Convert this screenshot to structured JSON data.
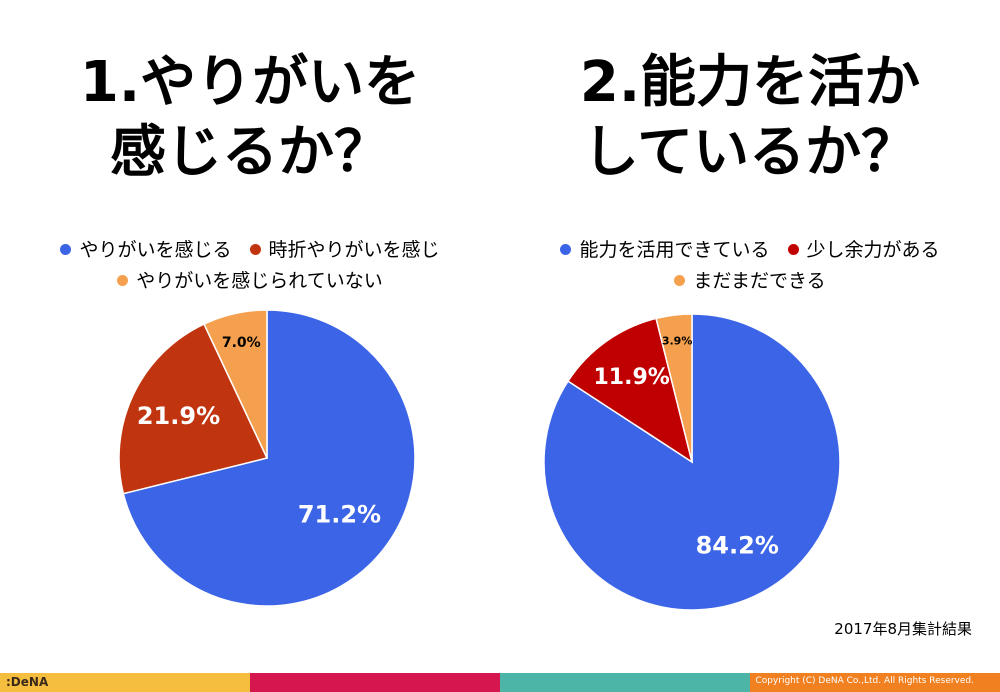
{
  "titles": {
    "left": [
      "1.やりがいを",
      "感じるか？"
    ],
    "right": [
      "2.能力を活か",
      "しているか？"
    ]
  },
  "legend_left": {
    "row1": [
      "やりがいを感じる",
      "時折やりがいを感じ"
    ],
    "row2": [
      "やりがいを感じられていない"
    ]
  },
  "legend_right": {
    "row1": [
      "能力を活用できている",
      "少し余力がある"
    ],
    "row2": [
      "まだまだできる"
    ]
  },
  "colors": {
    "blue": "#3c64e6",
    "red_left": "#c0350f",
    "red_right": "#c00000",
    "orange": "#f5a04e",
    "footer1": "#f6be3f",
    "footer2": "#d6164e",
    "footer3": "#4cb5a7",
    "footer4": "#f08020"
  },
  "chart_data": [
    {
      "type": "pie",
      "title": "1.やりがいを感じるか？",
      "categories": [
        "やりがいを感じる",
        "時折やりがいを感じ",
        "やりがいを感じられていない"
      ],
      "values": [
        71.2,
        21.9,
        7.0
      ],
      "labels": [
        "71.2%",
        "21.9%",
        "7.0%"
      ]
    },
    {
      "type": "pie",
      "title": "2.能力を活かしているか？",
      "categories": [
        "能力を活用できている",
        "少し余力がある",
        "まだまだできる"
      ],
      "values": [
        84.2,
        11.9,
        3.9
      ],
      "labels": [
        "84.2%",
        "11.9%",
        "3.9%"
      ]
    }
  ],
  "note": "2017年8月集計結果",
  "footer": {
    "logo": ":DeNA",
    "copyright": "Copyright (C) DeNA Co.,Ltd. All Rights Reserved."
  }
}
